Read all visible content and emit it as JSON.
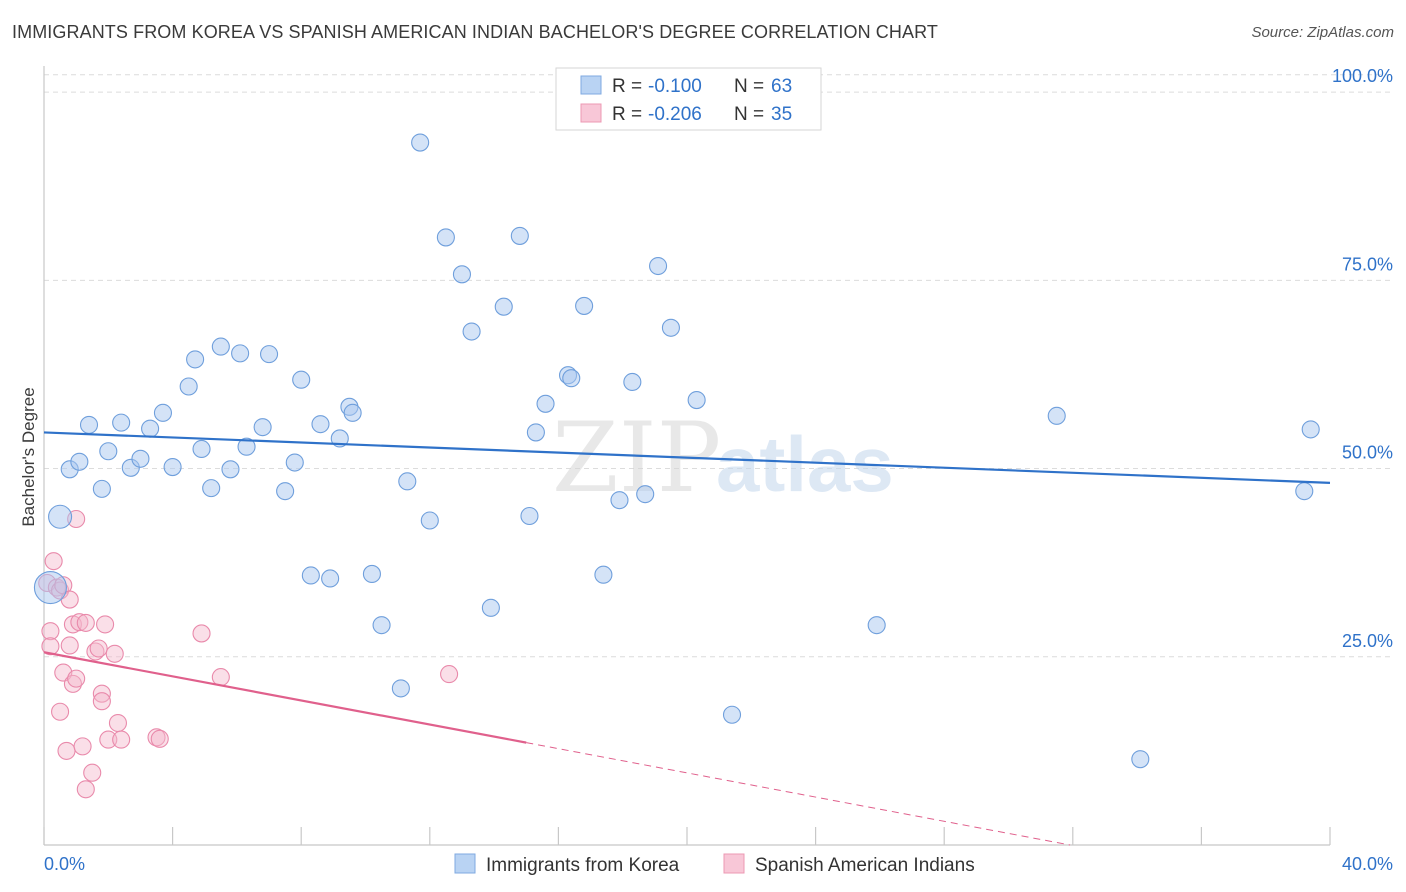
{
  "title": "IMMIGRANTS FROM KOREA VS SPANISH AMERICAN INDIAN BACHELOR'S DEGREE CORRELATION CHART",
  "source": "Source: ZipAtlas.com",
  "watermark": {
    "part1": "ZIP",
    "part2": "atlas"
  },
  "chart_data": {
    "type": "scatter",
    "ylabel": "Bachelor's Degree",
    "xlim": [
      0,
      40
    ],
    "ylim": [
      0,
      104
    ],
    "x_tick_labels": [
      "0.0%",
      "40.0%"
    ],
    "y_ticks": [
      25,
      50,
      75,
      100
    ],
    "y_tick_labels": [
      "25.0%",
      "50.0%",
      "75.0%",
      "100.0%"
    ],
    "grid": true,
    "legend_position": "top-center",
    "colors": {
      "korea": "#a9c8f0",
      "korea_line": "#2f72c9",
      "spanish": "#f5b8cc",
      "spanish_line": "#e0608c",
      "value_text": "#2f72c9"
    },
    "stats": [
      {
        "r_label": "R = ",
        "r_value": "-0.100",
        "n_label": "N = ",
        "n_value": "63"
      },
      {
        "r_label": "R = ",
        "r_value": "-0.206",
        "n_label": "N = ",
        "n_value": "35"
      }
    ],
    "series": [
      {
        "name": "Immigrants from Korea",
        "trend": {
          "x": [
            0,
            40
          ],
          "y": [
            54.8,
            48.1
          ]
        },
        "points": [
          [
            0.2,
            34.2
          ],
          [
            0.5,
            43.6
          ],
          [
            0.8,
            49.9
          ],
          [
            1.1,
            50.9
          ],
          [
            1.4,
            55.8
          ],
          [
            1.8,
            47.3
          ],
          [
            2.0,
            52.3
          ],
          [
            2.4,
            56.1
          ],
          [
            2.7,
            50.1
          ],
          [
            3.0,
            51.3
          ],
          [
            3.3,
            55.3
          ],
          [
            3.7,
            57.4
          ],
          [
            4.0,
            50.2
          ],
          [
            4.5,
            60.9
          ],
          [
            4.7,
            64.5
          ],
          [
            4.9,
            52.6
          ],
          [
            5.2,
            47.4
          ],
          [
            5.5,
            66.2
          ],
          [
            5.8,
            49.9
          ],
          [
            6.1,
            65.3
          ],
          [
            6.3,
            52.9
          ],
          [
            6.8,
            55.5
          ],
          [
            7.0,
            65.2
          ],
          [
            7.5,
            47.0
          ],
          [
            7.8,
            50.8
          ],
          [
            8.0,
            61.8
          ],
          [
            8.3,
            35.8
          ],
          [
            8.6,
            55.9
          ],
          [
            8.9,
            35.4
          ],
          [
            9.2,
            54.0
          ],
          [
            9.5,
            58.2
          ],
          [
            9.6,
            57.4
          ],
          [
            10.2,
            36.0
          ],
          [
            10.5,
            29.2
          ],
          [
            11.1,
            20.8
          ],
          [
            11.3,
            48.3
          ],
          [
            11.7,
            93.3
          ],
          [
            12.0,
            43.1
          ],
          [
            12.5,
            80.7
          ],
          [
            13.0,
            75.8
          ],
          [
            13.3,
            68.2
          ],
          [
            13.9,
            31.5
          ],
          [
            14.3,
            71.5
          ],
          [
            14.8,
            80.9
          ],
          [
            15.1,
            43.7
          ],
          [
            15.3,
            54.8
          ],
          [
            15.6,
            58.6
          ],
          [
            16.3,
            62.4
          ],
          [
            16.4,
            62.0
          ],
          [
            16.8,
            71.6
          ],
          [
            17.4,
            35.9
          ],
          [
            17.9,
            45.8
          ],
          [
            18.3,
            61.5
          ],
          [
            18.7,
            46.6
          ],
          [
            19.1,
            76.9
          ],
          [
            19.5,
            68.7
          ],
          [
            20.3,
            59.1
          ],
          [
            21.4,
            17.3
          ],
          [
            25.9,
            29.2
          ],
          [
            31.5,
            57.0
          ],
          [
            34.1,
            11.4
          ],
          [
            39.2,
            47.0
          ],
          [
            39.4,
            55.2
          ]
        ]
      },
      {
        "name": "Spanish American Indians",
        "trend": {
          "x": [
            0,
            15
          ],
          "y": [
            25.6,
            13.6
          ],
          "dash_to": {
            "x": 40,
            "y": -6.5
          }
        },
        "points": [
          [
            0.1,
            34.8
          ],
          [
            0.2,
            28.4
          ],
          [
            0.2,
            26.4
          ],
          [
            0.3,
            37.7
          ],
          [
            0.4,
            34.2
          ],
          [
            0.5,
            33.8
          ],
          [
            0.5,
            17.7
          ],
          [
            0.6,
            34.5
          ],
          [
            0.6,
            22.9
          ],
          [
            0.7,
            12.5
          ],
          [
            0.8,
            26.5
          ],
          [
            0.8,
            32.6
          ],
          [
            0.9,
            29.3
          ],
          [
            0.9,
            21.4
          ],
          [
            1.0,
            22.1
          ],
          [
            1.0,
            43.3
          ],
          [
            1.1,
            29.6
          ],
          [
            1.2,
            13.1
          ],
          [
            1.3,
            7.4
          ],
          [
            1.3,
            29.5
          ],
          [
            1.5,
            9.6
          ],
          [
            1.6,
            25.7
          ],
          [
            1.7,
            26.1
          ],
          [
            1.8,
            20.1
          ],
          [
            1.8,
            19.1
          ],
          [
            1.9,
            29.3
          ],
          [
            2.0,
            14.0
          ],
          [
            2.2,
            25.4
          ],
          [
            2.3,
            16.2
          ],
          [
            2.4,
            14.0
          ],
          [
            3.5,
            14.3
          ],
          [
            3.6,
            14.1
          ],
          [
            4.9,
            28.1
          ],
          [
            5.5,
            22.3
          ],
          [
            12.6,
            22.7
          ]
        ]
      }
    ]
  }
}
